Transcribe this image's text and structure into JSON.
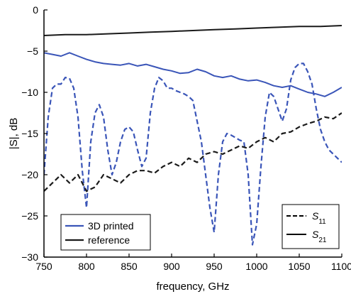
{
  "chart_data": {
    "type": "line",
    "xlabel": "frequency, GHz",
    "ylabel": "|S|, dB",
    "xlim": [
      750,
      1100
    ],
    "ylim": [
      -30,
      0
    ],
    "x_ticks": [
      750,
      800,
      850,
      900,
      950,
      1000,
      1050,
      1100
    ],
    "y_ticks": [
      0,
      -5,
      -10,
      -15,
      -20,
      -25,
      -30
    ],
    "grid": false,
    "legend_color": {
      "position": "bottom-left",
      "entries": [
        {
          "label": "3D printed",
          "color": "#3a55b8"
        },
        {
          "label": "reference",
          "color": "#1a1a1a"
        }
      ]
    },
    "legend_style": {
      "position": "bottom-right",
      "entries": [
        {
          "label": "S",
          "subscript": "11",
          "dash": "dashed"
        },
        {
          "label": "S",
          "subscript": "21",
          "dash": "solid"
        }
      ]
    },
    "series": [
      {
        "name": "3D printed S21",
        "color": "#3a55b8",
        "dash": "solid",
        "x": [
          750,
          760,
          770,
          780,
          790,
          800,
          810,
          820,
          830,
          840,
          850,
          860,
          870,
          880,
          890,
          900,
          910,
          920,
          930,
          940,
          950,
          960,
          970,
          980,
          990,
          1000,
          1010,
          1020,
          1030,
          1040,
          1050,
          1060,
          1070,
          1080,
          1090,
          1100
        ],
        "y": [
          -5.2,
          -5.4,
          -5.6,
          -5.2,
          -5.6,
          -6.0,
          -6.3,
          -6.5,
          -6.6,
          -6.7,
          -6.5,
          -6.8,
          -6.6,
          -6.9,
          -7.2,
          -7.4,
          -7.7,
          -7.6,
          -7.2,
          -7.5,
          -8.0,
          -8.2,
          -8.0,
          -8.4,
          -8.6,
          -8.5,
          -8.8,
          -9.2,
          -9.4,
          -9.2,
          -9.6,
          -10.0,
          -10.2,
          -10.5,
          -10.0,
          -9.4
        ]
      },
      {
        "name": "reference S21",
        "color": "#1a1a1a",
        "dash": "solid",
        "x": [
          750,
          775,
          800,
          825,
          850,
          875,
          900,
          925,
          950,
          975,
          1000,
          1025,
          1050,
          1075,
          1100
        ],
        "y": [
          -3.1,
          -3.0,
          -3.0,
          -2.9,
          -2.8,
          -2.7,
          -2.6,
          -2.5,
          -2.4,
          -2.3,
          -2.2,
          -2.1,
          -2.0,
          -2.0,
          -1.9
        ]
      },
      {
        "name": "3D printed S11",
        "color": "#3a55b8",
        "dash": "dashed",
        "x": [
          750,
          755,
          760,
          765,
          770,
          775,
          780,
          785,
          790,
          795,
          800,
          805,
          810,
          815,
          820,
          825,
          830,
          835,
          840,
          845,
          850,
          855,
          860,
          865,
          870,
          875,
          880,
          885,
          890,
          895,
          900,
          905,
          910,
          915,
          920,
          925,
          930,
          935,
          940,
          945,
          950,
          955,
          960,
          965,
          970,
          975,
          980,
          985,
          990,
          995,
          1000,
          1005,
          1010,
          1015,
          1020,
          1025,
          1030,
          1035,
          1040,
          1045,
          1050,
          1055,
          1060,
          1065,
          1070,
          1075,
          1080,
          1085,
          1090,
          1095,
          1100
        ],
        "y": [
          -20,
          -13,
          -9.5,
          -9,
          -9,
          -8.2,
          -8.3,
          -9.5,
          -13,
          -19.5,
          -24,
          -16,
          -12.5,
          -11.5,
          -13,
          -17,
          -20,
          -18.5,
          -16,
          -14.5,
          -14.2,
          -14.8,
          -17,
          -19,
          -18,
          -12.5,
          -9.5,
          -8.2,
          -8.6,
          -9.5,
          -9.5,
          -9.8,
          -10,
          -10.2,
          -10.5,
          -11,
          -13.5,
          -16,
          -20,
          -24,
          -27,
          -20,
          -16,
          -15,
          -15.2,
          -15.5,
          -15.8,
          -16,
          -20,
          -28.5,
          -26,
          -19,
          -13,
          -10,
          -10.5,
          -12,
          -13.5,
          -12,
          -8.5,
          -7,
          -6.5,
          -6.5,
          -7.5,
          -9,
          -12,
          -14.5,
          -16,
          -17,
          -17.5,
          -18,
          -18.5
        ]
      },
      {
        "name": "reference S11",
        "color": "#1a1a1a",
        "dash": "dashed",
        "x": [
          750,
          760,
          770,
          780,
          790,
          800,
          810,
          820,
          830,
          840,
          850,
          860,
          870,
          880,
          890,
          900,
          910,
          920,
          930,
          940,
          950,
          960,
          970,
          980,
          990,
          1000,
          1010,
          1020,
          1030,
          1040,
          1050,
          1060,
          1070,
          1080,
          1090,
          1100
        ],
        "y": [
          -22,
          -21,
          -20,
          -21,
          -20,
          -22,
          -21.5,
          -20,
          -20.5,
          -21,
          -20,
          -19.5,
          -19.5,
          -19.8,
          -19,
          -18.5,
          -19,
          -18,
          -18.5,
          -17.5,
          -17.2,
          -17.5,
          -17,
          -16.5,
          -16.8,
          -16,
          -15.5,
          -16,
          -15,
          -14.8,
          -14.2,
          -13.8,
          -13.5,
          -13,
          -13.2,
          -12.5
        ]
      }
    ]
  }
}
